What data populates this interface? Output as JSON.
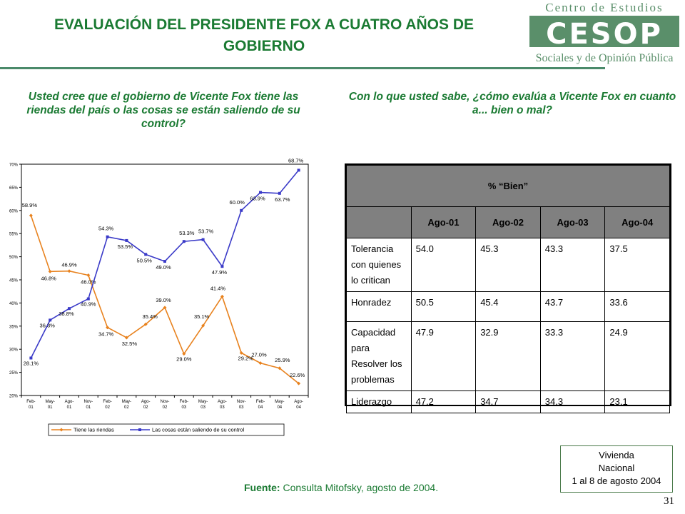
{
  "title": "EVALUACIÓN DEL PRESIDENTE FOX A CUATRO AÑOS DE GOBIERNO",
  "logo": {
    "line1": "Centro de Estudios",
    "acronym": "CESOP",
    "line2": "Sociales y de Opinión Pública",
    "color": "#5a8f6a"
  },
  "question_left": "Usted  cree que el gobierno de Vicente Fox tiene las riendas del país o las cosas  se están saliendo de su control?",
  "question_right": "Con lo que usted sabe, ¿cómo evalúa a Vicente Fox en cuanto a... bien o mal?",
  "chart_data": {
    "type": "line",
    "categories": [
      "Feb-01",
      "May-01",
      "Ago-01",
      "Nov-01",
      "Feb-02",
      "May-02",
      "Ago-02",
      "Nov-02",
      "Feb-03",
      "May-03",
      "Ago-03",
      "Nov-03",
      "Feb-04",
      "May-04",
      "Ago-04"
    ],
    "yticks": [
      "20%",
      "25%",
      "30%",
      "35%",
      "40%",
      "45%",
      "50%",
      "55%",
      "60%",
      "65%",
      "70%"
    ],
    "ylim": [
      20,
      70
    ],
    "series": [
      {
        "name": "Tiene las riendas",
        "color": "#e8821e",
        "marker": "diamond",
        "values": [
          58.9,
          46.8,
          46.9,
          46.0,
          34.7,
          32.5,
          35.4,
          39.0,
          29.0,
          35.1,
          41.4,
          29.2,
          27.0,
          25.9,
          22.6
        ],
        "labels": [
          "58.9%",
          "46.8%",
          "46.9%",
          "46.0%",
          "34.7%",
          "32.5%",
          "35.4%",
          "39.0%",
          "29.0%",
          "35.1%",
          "41.4%",
          "29.2%",
          "27.0%",
          "25.9%",
          "22.6%"
        ]
      },
      {
        "name": "Las cosas están saliendo de su control",
        "color": "#3a3ac8",
        "marker": "square",
        "values": [
          28.1,
          36.3,
          38.8,
          40.9,
          54.3,
          53.5,
          50.5,
          49.0,
          53.3,
          53.7,
          47.9,
          60.0,
          63.9,
          63.7,
          68.7
        ],
        "labels": [
          "28.1%",
          "36.3%",
          "38.8%",
          "40.9%",
          "54.3%",
          "53.5%",
          "50.5%",
          "49.0%",
          "53.3%",
          "53.7%",
          "47.9%",
          "60.0%",
          "63.9%",
          "63.7%",
          "68.7%"
        ]
      }
    ],
    "grid": false,
    "legend": "bottom"
  },
  "table": {
    "header": "% “Bien”",
    "columns": [
      "Ago-01",
      "Ago-02",
      "Ago-03",
      "Ago-04"
    ],
    "rows": [
      {
        "label": "Tolerancia con quienes lo critican",
        "values": [
          "54.0",
          "45.3",
          "43.3",
          "37.5"
        ]
      },
      {
        "label": "Honradez",
        "values": [
          "50.5",
          "45.4",
          "43.7",
          "33.6"
        ]
      },
      {
        "label": "Capacidad para Resolver los problemas",
        "values": [
          "47.9",
          "32.9",
          "33.3",
          "24.9"
        ]
      },
      {
        "label": "Liderazgo",
        "values": [
          "47.2",
          "34.7",
          "34.3",
          "23.1"
        ]
      }
    ]
  },
  "source_label": "Fuente:",
  "source_text": " Consulta Mitofsky,  agosto de 2004.",
  "note": {
    "line1": "Vivienda",
    "line2": "Nacional",
    "line3": "1 al 8 de agosto 2004"
  },
  "page_number": "31"
}
